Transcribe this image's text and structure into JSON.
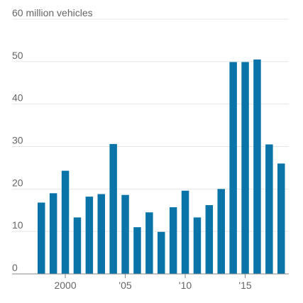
{
  "chart_data": {
    "type": "bar",
    "x": [
      1998,
      1999,
      2000,
      2001,
      2002,
      2003,
      2004,
      2005,
      2006,
      2007,
      2008,
      2009,
      2010,
      2011,
      2012,
      2013,
      2014,
      2015,
      2016,
      2017,
      2018
    ],
    "values": [
      16.8,
      19.0,
      24.3,
      13.3,
      18.2,
      18.8,
      30.6,
      18.6,
      11.0,
      14.5,
      9.9,
      15.7,
      19.6,
      13.3,
      16.2,
      20.0,
      49.9,
      49.9,
      50.5,
      30.5,
      26.0
    ],
    "ylim": [
      0,
      60
    ],
    "yticks": [
      0,
      10,
      20,
      30,
      40,
      50,
      60
    ],
    "ytick_labels": [
      "0",
      "10",
      "20",
      "30",
      "40",
      "50",
      "60 million vehicles"
    ],
    "xticks": [
      2000,
      2005,
      2010,
      2015
    ],
    "xtick_labels": [
      "2000",
      "'05",
      "'10",
      "'15"
    ],
    "grid": true,
    "bar_color": "#0a74a8",
    "title": "",
    "xlabel": "",
    "ylabel": ""
  }
}
